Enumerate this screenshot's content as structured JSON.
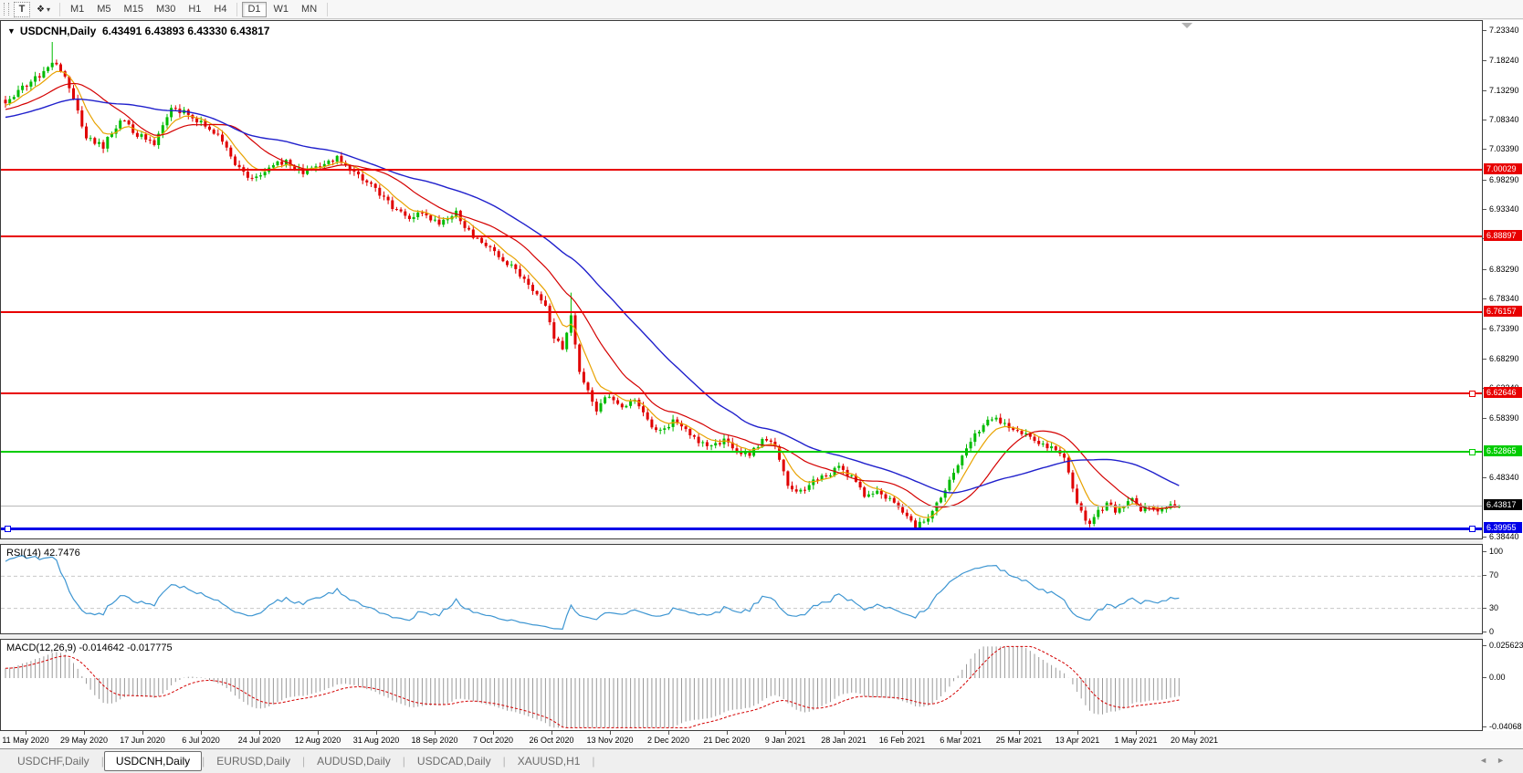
{
  "toolbar": {
    "t_button": "T",
    "objects_button_icon": "❖",
    "objects_button_caret": "▾",
    "timeframes": [
      "M1",
      "M5",
      "M15",
      "M30",
      "H1",
      "H4",
      "D1",
      "W1",
      "MN"
    ],
    "active_timeframe": "D1"
  },
  "chart_header": {
    "symbol_menu_icon": "▼",
    "title": "USDCNH,Daily",
    "quotes": "6.43491 6.43893 6.43330 6.43817"
  },
  "price_axis": {
    "ticks": [
      {
        "label": "7.23340",
        "price": 7.2334
      },
      {
        "label": "7.18240",
        "price": 7.1824
      },
      {
        "label": "7.13290",
        "price": 7.1329
      },
      {
        "label": "7.08340",
        "price": 7.0834
      },
      {
        "label": "7.03390",
        "price": 7.0339
      },
      {
        "label": "6.98290",
        "price": 6.9829
      },
      {
        "label": "6.93340",
        "price": 6.9334
      },
      {
        "label": "6.88390",
        "price": 6.8839
      },
      {
        "label": "6.83290",
        "price": 6.8329
      },
      {
        "label": "6.78340",
        "price": 6.7834
      },
      {
        "label": "6.73390",
        "price": 6.7339
      },
      {
        "label": "6.68290",
        "price": 6.6829
      },
      {
        "label": "6.63340",
        "price": 6.6334
      },
      {
        "label": "6.58390",
        "price": 6.5839
      },
      {
        "label": "6.48340",
        "price": 6.4834
      },
      {
        "label": "6.38440",
        "price": 6.3844
      }
    ]
  },
  "hlines": [
    {
      "label": "7.00029",
      "price": 7.00029,
      "color": "#e80000",
      "width": 2,
      "handles": []
    },
    {
      "label": "6.88897",
      "price": 6.88897,
      "color": "#e80000",
      "width": 2,
      "handles": []
    },
    {
      "label": "6.76157",
      "price": 6.76157,
      "color": "#e80000",
      "width": 2,
      "handles": []
    },
    {
      "label": "6.62646",
      "price": 6.62646,
      "color": "#e80000",
      "width": 2,
      "handles": [
        "right"
      ]
    },
    {
      "label": "6.52865",
      "price": 6.52865,
      "color": "#00cc00",
      "width": 2,
      "handles": [
        "right"
      ]
    },
    {
      "label": "6.39955",
      "price": 6.39955,
      "color": "#0000e8",
      "width": 3,
      "handles": [
        "left",
        "right"
      ]
    }
  ],
  "current_price_marker": {
    "label": "6.43817",
    "price": 6.43817,
    "line_color": "#b8b8b8",
    "badge_bg": "#000000"
  },
  "rsi_panel": {
    "label": "RSI(14) 42.7476",
    "period": 14,
    "current": 42.7476,
    "line_color": "#3e96d2",
    "level_color": "#c8c8c8",
    "dashed_levels": [
      70,
      30
    ],
    "ticks": [
      {
        "label": "100",
        "v": 100
      },
      {
        "label": "70",
        "v": 70
      },
      {
        "label": "30",
        "v": 30
      },
      {
        "label": "0",
        "v": 0
      }
    ]
  },
  "macd_panel": {
    "label": "MACD(12,26,9) -0.014642 -0.017775",
    "fast": 12,
    "slow": 26,
    "signal_period": 9,
    "macd_current": -0.014642,
    "signal_current": -0.017775,
    "histogram_color": "#9a9a9a",
    "signal_color": "#d40000",
    "ticks": [
      {
        "label": "0.025623",
        "v": 0.025623
      },
      {
        "label": "0.00",
        "v": 0
      },
      {
        "label": "-0.04068",
        "v": -0.04068
      }
    ]
  },
  "date_axis": {
    "labels": [
      "11 May 2020",
      "29 May 2020",
      "17 Jun 2020",
      "6 Jul 2020",
      "24 Jul 2020",
      "12 Aug 2020",
      "31 Aug 2020",
      "18 Sep 2020",
      "7 Oct 2020",
      "26 Oct 2020",
      "13 Nov 2020",
      "2 Dec 2020",
      "21 Dec 2020",
      "9 Jan 2021",
      "28 Jan 2021",
      "16 Feb 2021",
      "6 Mar 2021",
      "25 Mar 2021",
      "13 Apr 2021",
      "1 May 2021",
      "20 May 2021"
    ]
  },
  "tabs": {
    "items": [
      "USDCHF,Daily",
      "USDCNH,Daily",
      "EURUSD,Daily",
      "AUDUSD,Daily",
      "USDCAD,Daily",
      "XAUUSD,H1"
    ],
    "active": "USDCNH,Daily",
    "scroll_left": "◄",
    "scroll_right": "►"
  },
  "chart_data": {
    "type": "candlestick",
    "symbol": "USDCNH",
    "period": "Daily",
    "bar_count": 277,
    "last_bar": {
      "open": 6.43491,
      "high": 6.43893,
      "low": 6.4333,
      "close": 6.43817
    },
    "bull_color": "#00bb00",
    "bear_color": "#e00000",
    "y_range": [
      6.3844,
      7.2334
    ],
    "price_waypoints": [
      [
        0,
        7.115
      ],
      [
        4,
        7.14
      ],
      [
        8,
        7.16
      ],
      [
        11,
        7.185
      ],
      [
        13,
        7.17
      ],
      [
        16,
        7.12
      ],
      [
        19,
        7.055
      ],
      [
        23,
        7.04
      ],
      [
        27,
        7.085
      ],
      [
        31,
        7.06
      ],
      [
        35,
        7.045
      ],
      [
        39,
        7.1
      ],
      [
        43,
        7.095
      ],
      [
        47,
        7.075
      ],
      [
        50,
        7.06
      ],
      [
        54,
        7.01
      ],
      [
        58,
        6.985
      ],
      [
        62,
        7.005
      ],
      [
        66,
        7.015
      ],
      [
        70,
        6.995
      ],
      [
        74,
        7.005
      ],
      [
        78,
        7.02
      ],
      [
        82,
        6.995
      ],
      [
        86,
        6.975
      ],
      [
        90,
        6.945
      ],
      [
        94,
        6.92
      ],
      [
        98,
        6.928
      ],
      [
        102,
        6.91
      ],
      [
        106,
        6.93
      ],
      [
        110,
        6.885
      ],
      [
        114,
        6.872
      ],
      [
        118,
        6.845
      ],
      [
        121,
        6.822
      ],
      [
        124,
        6.8
      ],
      [
        127,
        6.775
      ],
      [
        129,
        6.72
      ],
      [
        131,
        6.7
      ],
      [
        133,
        6.755
      ],
      [
        135,
        6.665
      ],
      [
        137,
        6.63
      ],
      [
        139,
        6.6
      ],
      [
        142,
        6.625
      ],
      [
        145,
        6.6
      ],
      [
        148,
        6.615
      ],
      [
        151,
        6.58
      ],
      [
        154,
        6.56
      ],
      [
        157,
        6.578
      ],
      [
        160,
        6.568
      ],
      [
        163,
        6.545
      ],
      [
        166,
        6.535
      ],
      [
        169,
        6.55
      ],
      [
        172,
        6.53
      ],
      [
        175,
        6.525
      ],
      [
        178,
        6.548
      ],
      [
        181,
        6.538
      ],
      [
        184,
        6.475
      ],
      [
        187,
        6.46
      ],
      [
        190,
        6.478
      ],
      [
        193,
        6.49
      ],
      [
        196,
        6.5
      ],
      [
        199,
        6.485
      ],
      [
        202,
        6.455
      ],
      [
        205,
        6.462
      ],
      [
        208,
        6.45
      ],
      [
        211,
        6.428
      ],
      [
        214,
        6.405
      ],
      [
        217,
        6.415
      ],
      [
        220,
        6.455
      ],
      [
        223,
        6.495
      ],
      [
        226,
        6.535
      ],
      [
        229,
        6.565
      ],
      [
        232,
        6.583
      ],
      [
        235,
        6.575
      ],
      [
        238,
        6.562
      ],
      [
        241,
        6.552
      ],
      [
        244,
        6.542
      ],
      [
        247,
        6.532
      ],
      [
        249,
        6.518
      ],
      [
        251,
        6.468
      ],
      [
        253,
        6.425
      ],
      [
        255,
        6.408
      ],
      [
        257,
        6.426
      ],
      [
        259,
        6.442
      ],
      [
        261,
        6.428
      ],
      [
        263,
        6.438
      ],
      [
        265,
        6.448
      ],
      [
        267,
        6.432
      ],
      [
        269,
        6.44
      ],
      [
        271,
        6.425
      ],
      [
        273,
        6.435
      ],
      [
        275,
        6.442
      ],
      [
        276,
        6.43817
      ]
    ],
    "spikes": [
      [
        11,
        7.215
      ],
      [
        133,
        6.795
      ]
    ],
    "moving_averages": [
      {
        "type": "EMA",
        "period": 7,
        "color": "#e8a200"
      },
      {
        "type": "SMA",
        "period": 18,
        "color": "#d40000"
      },
      {
        "type": "SMA",
        "period": 40,
        "color": "#2020cc"
      }
    ],
    "horizontal_levels": [
      7.00029,
      6.88897,
      6.76157,
      6.62646,
      6.52865,
      6.39955
    ],
    "current_price": 6.43817,
    "indicators": [
      {
        "name": "RSI",
        "period": 14,
        "current": 42.7476
      },
      {
        "name": "MACD",
        "fast": 12,
        "slow": 26,
        "signal": 9,
        "current": -0.014642,
        "signal_current": -0.017775
      }
    ]
  }
}
